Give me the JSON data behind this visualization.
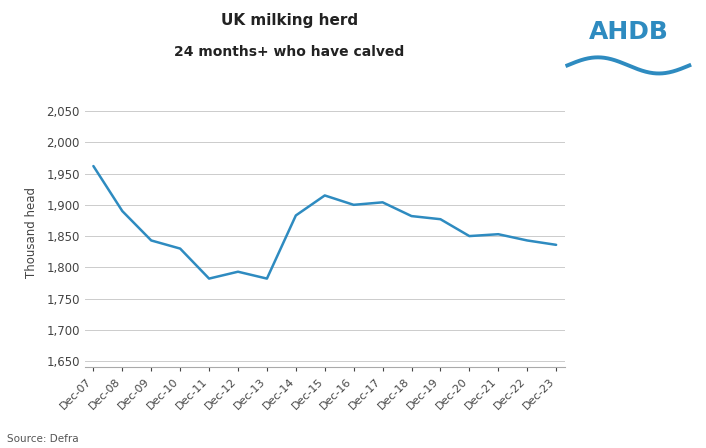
{
  "title_line1": "UK milking herd",
  "title_line2": "24 months+ who have calved",
  "ylabel": "Thousand head",
  "source": "Source: Defra",
  "line_color": "#2E8BC0",
  "background_color": "#FFFFFF",
  "grid_color": "#CCCCCC",
  "ylim": [
    1640,
    2070
  ],
  "yticks": [
    1650,
    1700,
    1750,
    1800,
    1850,
    1900,
    1950,
    2000,
    2050
  ],
  "x_labels": [
    "Dec-07",
    "Dec-08",
    "Dec-09",
    "Dec-10",
    "Dec-11",
    "Dec-12",
    "Dec-13",
    "Dec-14",
    "Dec-15",
    "Dec-16",
    "Dec-17",
    "Dec-18",
    "Dec-19",
    "Dec-20",
    "Dec-21",
    "Dec-22",
    "Dec-23"
  ],
  "values": [
    1962,
    1890,
    1843,
    1830,
    1782,
    1793,
    1782,
    1883,
    1915,
    1900,
    1904,
    1882,
    1877,
    1850,
    1853,
    1843,
    1836
  ]
}
